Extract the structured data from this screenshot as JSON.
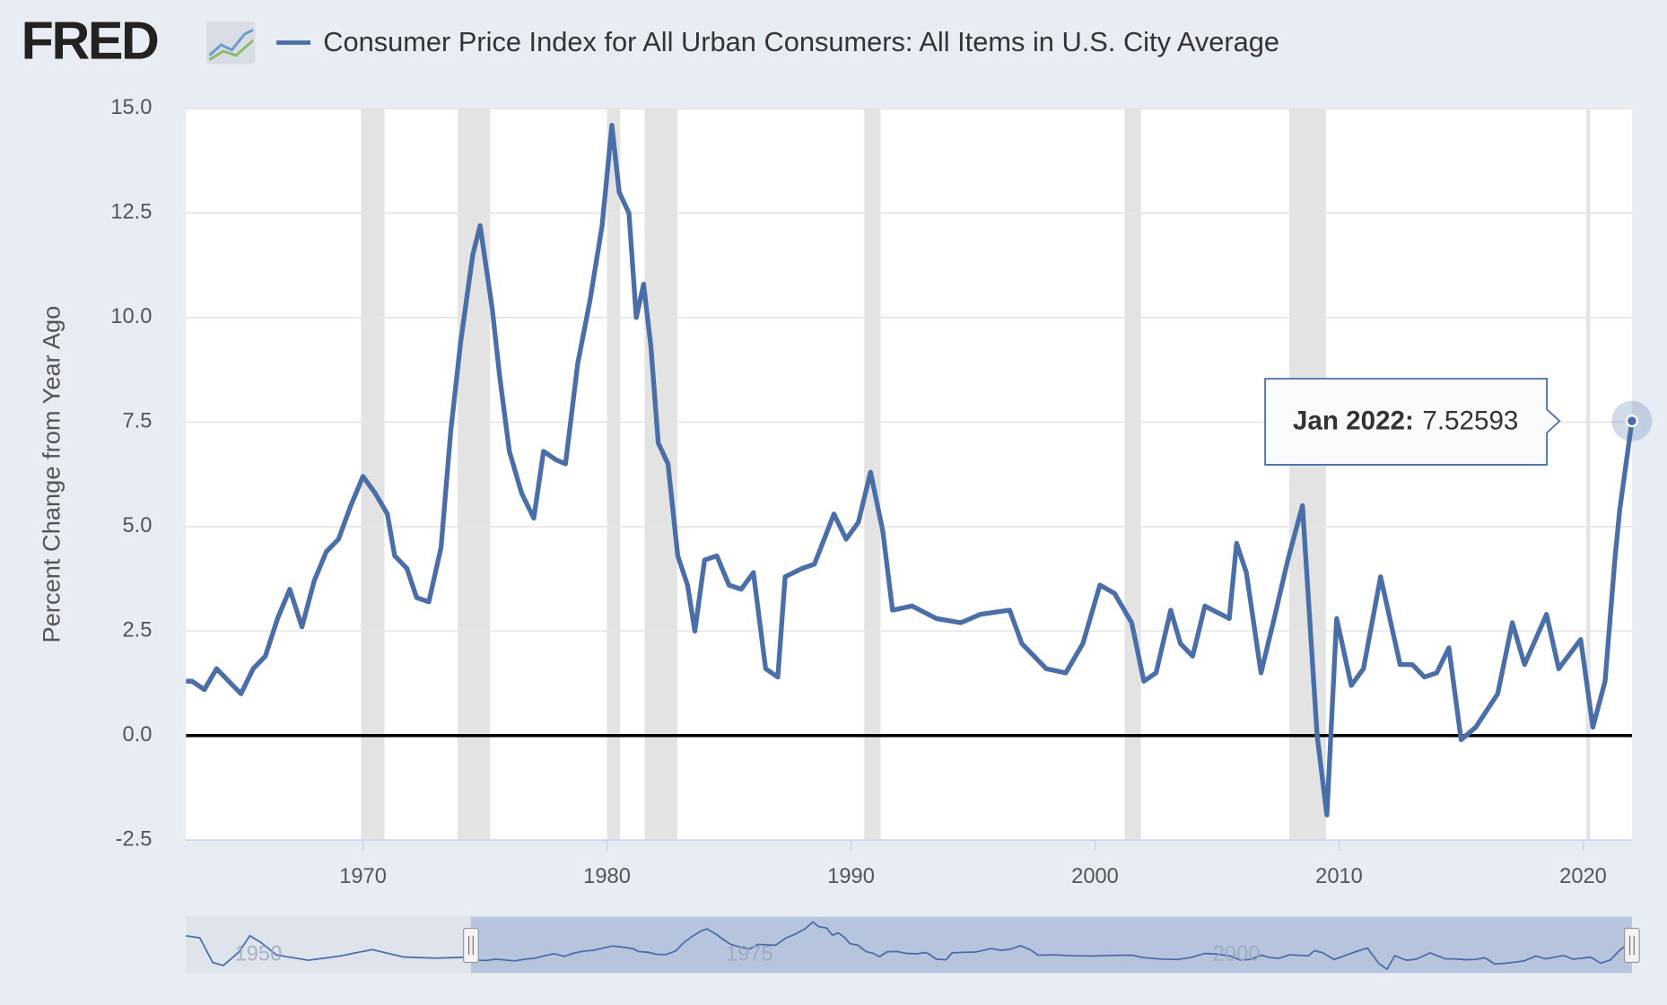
{
  "logo": "FRED",
  "chart_data": {
    "type": "line",
    "x": [
      1962.75,
      1963.0,
      1963.5,
      1964.0,
      1964.5,
      1965.0,
      1965.5,
      1966.0,
      1966.5,
      1967.0,
      1967.5,
      1968.0,
      1968.5,
      1969.0,
      1969.5,
      1970.0,
      1970.5,
      1971.0,
      1971.3,
      1971.8,
      1972.2,
      1972.7,
      1973.2,
      1973.6,
      1974.0,
      1974.5,
      1974.8,
      1975.3,
      1975.6,
      1976.0,
      1976.5,
      1977.0,
      1977.4,
      1977.9,
      1978.3,
      1978.8,
      1979.3,
      1979.8,
      1980.2,
      1980.5,
      1980.9,
      1981.2,
      1981.5,
      1981.8,
      1982.1,
      1982.5,
      1982.9,
      1983.3,
      1983.6,
      1984.0,
      1984.5,
      1985.0,
      1985.5,
      1986.0,
      1986.5,
      1987.0,
      1987.3,
      1988.0,
      1988.5,
      1989.3,
      1989.8,
      1990.3,
      1990.8,
      1991.3,
      1991.7,
      1992.5,
      1993.5,
      1994.5,
      1995.3,
      1996.5,
      1997.0,
      1998.0,
      1998.8,
      1999.5,
      2000.2,
      2000.8,
      2001.5,
      2002.0,
      2002.5,
      2003.1,
      2003.5,
      2004.0,
      2004.5,
      2005.5,
      2005.8,
      2006.2,
      2006.8,
      2007.3,
      2007.9,
      2008.5,
      2009.1,
      2009.5,
      2009.9,
      2010.5,
      2011.0,
      2011.7,
      2012.5,
      2013.0,
      2013.5,
      2014.0,
      2014.5,
      2015.0,
      2015.6,
      2016.5,
      2017.1,
      2017.6,
      2018.5,
      2019.0,
      2019.9,
      2020.4,
      2020.9,
      2021.3,
      2021.5,
      2022.0
    ],
    "series": [
      {
        "name": "Consumer Price Index for All Urban Consumers: All Items in U.S. City Average",
        "color": "#4a6ea8",
        "values": [
          1.3,
          1.3,
          1.1,
          1.6,
          1.3,
          1.0,
          1.6,
          1.9,
          2.8,
          3.5,
          2.6,
          3.7,
          4.4,
          4.7,
          5.5,
          6.2,
          5.8,
          5.3,
          4.3,
          4.0,
          3.3,
          3.2,
          4.5,
          7.3,
          9.4,
          11.5,
          12.2,
          10.2,
          8.6,
          6.8,
          5.8,
          5.2,
          6.8,
          6.6,
          6.5,
          8.9,
          10.4,
          12.2,
          14.6,
          13.0,
          12.5,
          10.0,
          10.8,
          9.3,
          7.0,
          6.5,
          4.3,
          3.6,
          2.5,
          4.2,
          4.3,
          3.6,
          3.5,
          3.9,
          1.6,
          1.4,
          3.8,
          4.0,
          4.1,
          5.3,
          4.7,
          5.1,
          6.3,
          4.9,
          3.0,
          3.1,
          2.8,
          2.7,
          2.9,
          3.0,
          2.2,
          1.6,
          1.5,
          2.2,
          3.6,
          3.4,
          2.7,
          1.3,
          1.5,
          3.0,
          2.2,
          1.9,
          3.1,
          2.8,
          4.6,
          3.9,
          1.5,
          2.7,
          4.2,
          5.5,
          0.0,
          -1.9,
          2.8,
          1.2,
          1.6,
          3.8,
          1.7,
          1.7,
          1.4,
          1.5,
          2.1,
          -0.1,
          0.2,
          1.0,
          2.7,
          1.7,
          2.9,
          1.6,
          2.3,
          0.2,
          1.3,
          4.2,
          5.4,
          7.52593
        ]
      }
    ],
    "y_label": "Percent Change from Year Ago",
    "xlim": [
      1962.75,
      2022.0
    ],
    "xticks": [
      1970,
      1980,
      1990,
      2000,
      2010,
      2020
    ],
    "ylim": [
      -2.5,
      15.0
    ],
    "yticks": [
      {
        "value": -2.5,
        "label": "-2.5"
      },
      {
        "value": 0,
        "label": "0.0"
      },
      {
        "value": 2.5,
        "label": "2.5"
      },
      {
        "value": 5,
        "label": "5.0"
      },
      {
        "value": 7.5,
        "label": "7.5"
      },
      {
        "value": 10,
        "label": "10.0"
      },
      {
        "value": 12.5,
        "label": "12.5"
      },
      {
        "value": 15,
        "label": "15.0"
      }
    ],
    "grid": true,
    "recessions": [
      [
        1969.92,
        1970.88
      ],
      [
        1973.88,
        1975.21
      ],
      [
        1980.0,
        1980.54
      ],
      [
        1981.54,
        1982.88
      ],
      [
        1990.54,
        1991.21
      ],
      [
        2001.21,
        2001.88
      ],
      [
        2007.96,
        2009.46
      ],
      [
        2020.13,
        2020.29
      ]
    ],
    "tooltip": {
      "label": "Jan 2022:",
      "value_path": "chart_data.series.0.values.113"
    },
    "navigator_labels": [
      "1950",
      "1975",
      "2000"
    ]
  }
}
